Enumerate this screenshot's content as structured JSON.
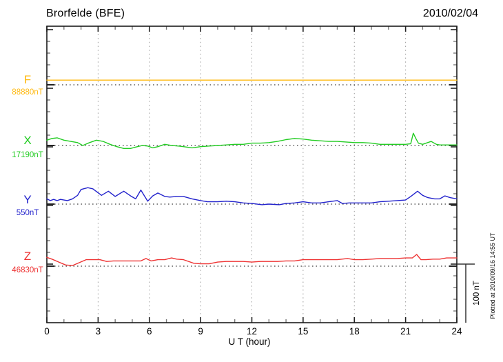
{
  "header": {
    "station_title": "Brorfelde (BFE)",
    "date": "2010/02/04"
  },
  "axis": {
    "xlabel": "U T (hour)",
    "hour_ticks": [
      0,
      3,
      6,
      9,
      12,
      15,
      18,
      21,
      24
    ],
    "scale_bar_label": "100 nT"
  },
  "plot_note": "Plotted at 2010/09/16 14:55 UT",
  "chart_data": {
    "type": "line",
    "title": "Brorfelde (BFE)",
    "subtitle": "2010/02/04",
    "xlabel": "U T (hour)",
    "x_range": [
      0,
      24
    ],
    "x_ticks": [
      0,
      3,
      6,
      9,
      12,
      15,
      18,
      21,
      24
    ],
    "grid": "vertical dotted at 3-hour intervals",
    "scale_bar": {
      "label": "100 nT",
      "nT": 100
    },
    "series": [
      {
        "name": "F",
        "baseline_label": "88880nT",
        "color": "#FFB90F",
        "style": "solid flat line",
        "points": [
          [
            0,
            8
          ],
          [
            24,
            8
          ]
        ]
      },
      {
        "name": "X",
        "baseline_label": "17190nT",
        "color": "#22CC22",
        "points": [
          [
            0,
            9
          ],
          [
            0.3,
            12
          ],
          [
            0.6,
            13
          ],
          [
            1,
            9
          ],
          [
            1.4,
            7
          ],
          [
            1.8,
            5
          ],
          [
            2.1,
            0
          ],
          [
            2.5,
            5
          ],
          [
            2.9,
            9
          ],
          [
            3.3,
            7
          ],
          [
            3.7,
            2
          ],
          [
            4.1,
            -2
          ],
          [
            4.5,
            -5
          ],
          [
            4.9,
            -5
          ],
          [
            5.3,
            -2
          ],
          [
            5.6,
            0
          ],
          [
            5.9,
            -1
          ],
          [
            6.2,
            -4
          ],
          [
            6.5,
            -2
          ],
          [
            6.9,
            2
          ],
          [
            7.3,
            0
          ],
          [
            7.7,
            -1
          ],
          [
            8,
            -2
          ],
          [
            8.5,
            -4
          ],
          [
            9,
            -2
          ],
          [
            9.5,
            -1
          ],
          [
            10,
            0
          ],
          [
            10.5,
            1
          ],
          [
            11,
            2
          ],
          [
            11.5,
            2
          ],
          [
            12,
            4
          ],
          [
            12.5,
            4
          ],
          [
            13,
            5
          ],
          [
            13.5,
            7
          ],
          [
            14,
            10
          ],
          [
            14.5,
            12
          ],
          [
            15,
            11
          ],
          [
            15.5,
            9
          ],
          [
            16,
            8
          ],
          [
            16.5,
            7
          ],
          [
            17,
            7
          ],
          [
            17.5,
            6
          ],
          [
            18,
            5
          ],
          [
            18.5,
            5
          ],
          [
            19,
            4
          ],
          [
            19.5,
            2
          ],
          [
            20,
            2
          ],
          [
            20.5,
            2
          ],
          [
            21,
            2
          ],
          [
            21.3,
            3
          ],
          [
            21.45,
            21
          ],
          [
            21.6,
            12
          ],
          [
            21.75,
            4
          ],
          [
            22,
            2
          ],
          [
            22.5,
            7
          ],
          [
            22.8,
            2
          ],
          [
            23,
            1
          ],
          [
            23.5,
            1
          ],
          [
            24,
            1
          ]
        ]
      },
      {
        "name": "Y",
        "baseline_label": "550nT",
        "color": "#2222CC",
        "points": [
          [
            0,
            9
          ],
          [
            0.2,
            6
          ],
          [
            0.4,
            8
          ],
          [
            0.6,
            6
          ],
          [
            0.8,
            8
          ],
          [
            1,
            7
          ],
          [
            1.2,
            6
          ],
          [
            1.5,
            9
          ],
          [
            1.8,
            15
          ],
          [
            2,
            25
          ],
          [
            2.4,
            28
          ],
          [
            2.7,
            26
          ],
          [
            3.2,
            15
          ],
          [
            3.6,
            22
          ],
          [
            4,
            13
          ],
          [
            4.5,
            22
          ],
          [
            4.9,
            14
          ],
          [
            5.2,
            9
          ],
          [
            5.5,
            24
          ],
          [
            5.9,
            5
          ],
          [
            6.2,
            14
          ],
          [
            6.5,
            19
          ],
          [
            6.9,
            13
          ],
          [
            7.2,
            12
          ],
          [
            7.6,
            13
          ],
          [
            8,
            13
          ],
          [
            8.5,
            9
          ],
          [
            9,
            6
          ],
          [
            9.4,
            4
          ],
          [
            10,
            4
          ],
          [
            10.5,
            5
          ],
          [
            11,
            4
          ],
          [
            11.5,
            2
          ],
          [
            12,
            1
          ],
          [
            12.6,
            -1
          ],
          [
            13,
            0
          ],
          [
            13.6,
            -1
          ],
          [
            14,
            1
          ],
          [
            14.5,
            2
          ],
          [
            15,
            4
          ],
          [
            15.5,
            2
          ],
          [
            16,
            2
          ],
          [
            16.5,
            4
          ],
          [
            17,
            6
          ],
          [
            17.3,
            1
          ],
          [
            17.7,
            2
          ],
          [
            18,
            2
          ],
          [
            18.5,
            2
          ],
          [
            19,
            2
          ],
          [
            19.5,
            4
          ],
          [
            20,
            5
          ],
          [
            20.5,
            6
          ],
          [
            21,
            7
          ],
          [
            21.3,
            13
          ],
          [
            21.7,
            22
          ],
          [
            22,
            15
          ],
          [
            22.3,
            11
          ],
          [
            22.7,
            9
          ],
          [
            23,
            9
          ],
          [
            23.3,
            14
          ],
          [
            23.6,
            11
          ],
          [
            24,
            9
          ]
        ]
      },
      {
        "name": "Z",
        "baseline_label": "46830nT",
        "color": "#EE3333",
        "points": [
          [
            0,
            15
          ],
          [
            0.3,
            12
          ],
          [
            0.7,
            7
          ],
          [
            1.1,
            2
          ],
          [
            1.5,
            1
          ],
          [
            1.9,
            6
          ],
          [
            2.3,
            11
          ],
          [
            2.7,
            11
          ],
          [
            3.1,
            11
          ],
          [
            3.5,
            8
          ],
          [
            3.9,
            9
          ],
          [
            4.3,
            9
          ],
          [
            4.7,
            9
          ],
          [
            5.1,
            9
          ],
          [
            5.5,
            9
          ],
          [
            5.8,
            13
          ],
          [
            6.1,
            9
          ],
          [
            6.5,
            11
          ],
          [
            6.9,
            11
          ],
          [
            7.3,
            14
          ],
          [
            7.6,
            12
          ],
          [
            8,
            11
          ],
          [
            8.6,
            5
          ],
          [
            9,
            4
          ],
          [
            9.5,
            4
          ],
          [
            10,
            7
          ],
          [
            10.5,
            8
          ],
          [
            11,
            8
          ],
          [
            11.5,
            8
          ],
          [
            12,
            7
          ],
          [
            12.5,
            8
          ],
          [
            13,
            8
          ],
          [
            13.5,
            8
          ],
          [
            14,
            9
          ],
          [
            14.5,
            9
          ],
          [
            15,
            11
          ],
          [
            15.5,
            11
          ],
          [
            16,
            11
          ],
          [
            16.5,
            11
          ],
          [
            17,
            11
          ],
          [
            17.6,
            13
          ],
          [
            18,
            11
          ],
          [
            18.5,
            11
          ],
          [
            19,
            12
          ],
          [
            19.5,
            13
          ],
          [
            20,
            13
          ],
          [
            20.5,
            13
          ],
          [
            21,
            14
          ],
          [
            21.4,
            14
          ],
          [
            21.65,
            20
          ],
          [
            21.9,
            11
          ],
          [
            22.2,
            11
          ],
          [
            22.6,
            12
          ],
          [
            23,
            12
          ],
          [
            23.4,
            14
          ],
          [
            23.7,
            14
          ],
          [
            24,
            14
          ]
        ]
      }
    ],
    "units_note": "points are [hour UT, offset in nT from the labelled baseline value]"
  }
}
